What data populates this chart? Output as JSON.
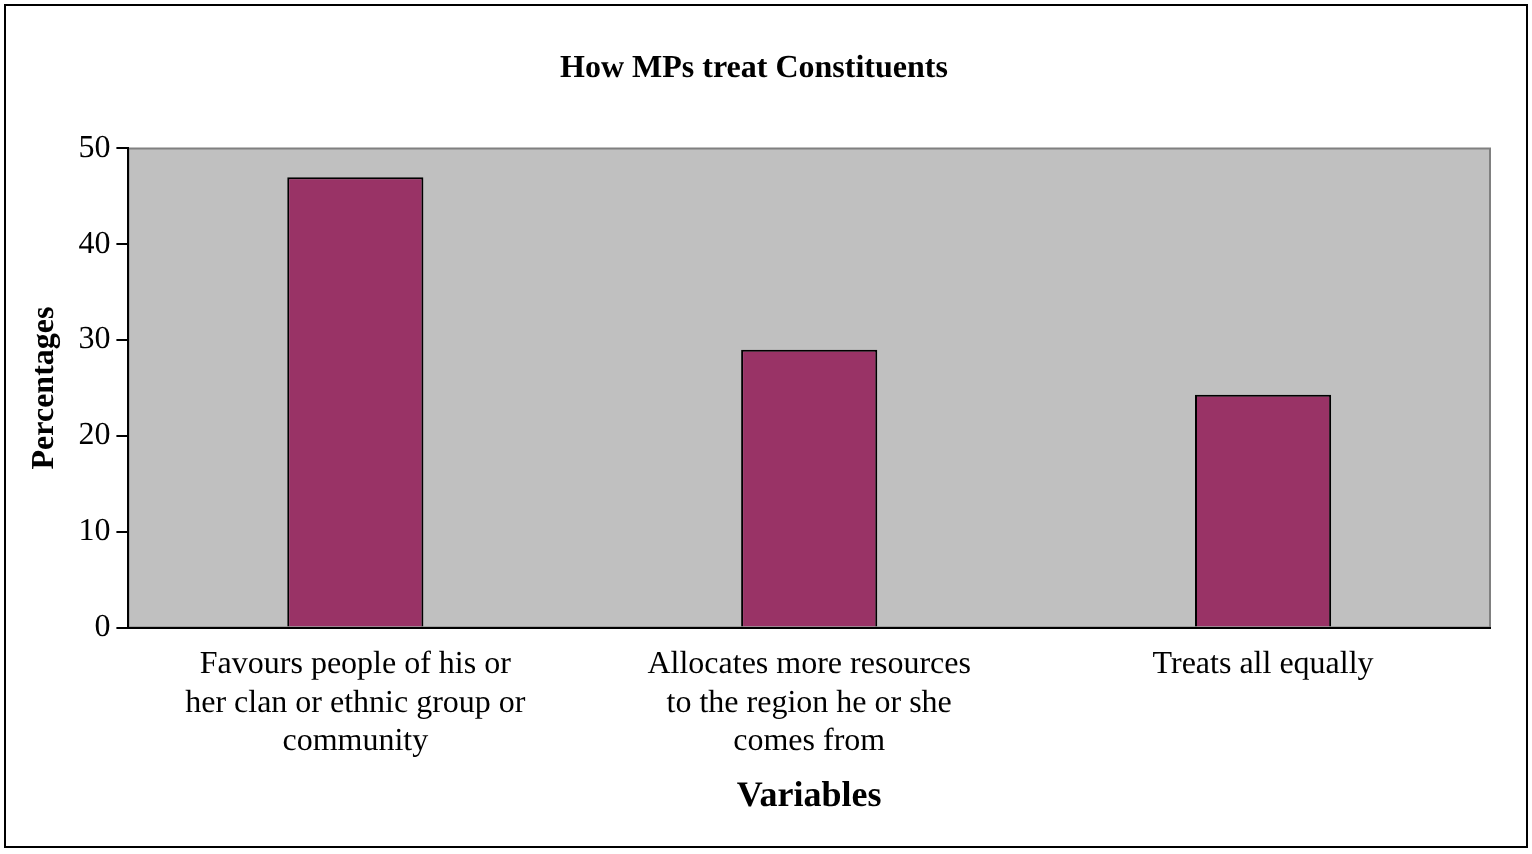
{
  "chart_data": {
    "type": "bar",
    "title": "How MPs treat Constituents",
    "xlabel": "Variables",
    "ylabel": "Percentages",
    "categories": [
      "Favours people of his or her clan or ethnic group or community",
      "Allocates more resources to the region he or she comes from",
      "Treats all equally"
    ],
    "values": [
      47,
      29,
      24.3
    ],
    "color": "#993366",
    "ylim": [
      0,
      50
    ],
    "yticks": [
      0,
      10,
      20,
      30,
      40,
      50
    ],
    "grid": false,
    "legend": false
  }
}
